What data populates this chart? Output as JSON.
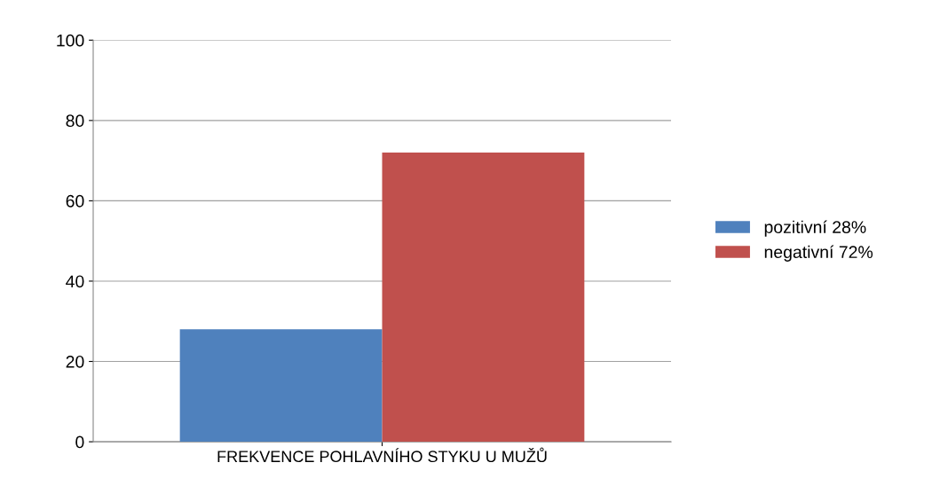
{
  "chart_data": {
    "type": "bar",
    "categories": [
      "FREKVENCE POHLAVNÍHO STYKU U MUŽŮ"
    ],
    "series": [
      {
        "name": "pozitivní 28%",
        "color": "#4f81bd",
        "values": [
          28
        ]
      },
      {
        "name": "negativní 72%",
        "color": "#c0504d",
        "values": [
          72
        ]
      }
    ],
    "ylim": [
      0,
      100
    ],
    "yticks": [
      0,
      20,
      40,
      60,
      80,
      100
    ],
    "grid": "y",
    "legend": "right"
  }
}
